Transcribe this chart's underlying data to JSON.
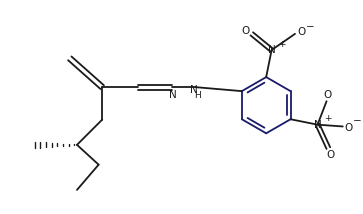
{
  "bg_color": "#ffffff",
  "line_color": "#1a1a1a",
  "ring_color": "#1a1a6a",
  "bond_lw": 1.3,
  "figsize": [
    3.63,
    2.14
  ],
  "dpi": 100,
  "xlim": [
    0,
    10
  ],
  "ylim": [
    0,
    5.9
  ]
}
